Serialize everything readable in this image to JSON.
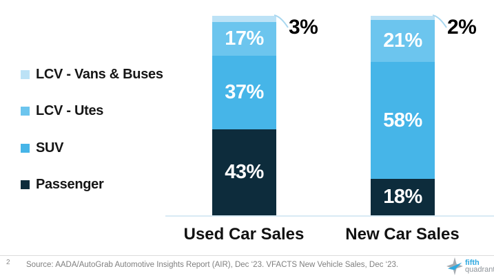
{
  "chart_data": {
    "type": "bar",
    "stacked": true,
    "orientation": "vertical",
    "categories": [
      "Used Car Sales",
      "New Car Sales"
    ],
    "series": [
      {
        "name": "LCV - Vans & Buses",
        "color": "#bce2f6",
        "values": [
          3,
          2
        ],
        "labels": [
          "3%",
          "2%"
        ],
        "label_placement": "callout-outside"
      },
      {
        "name": "LCV - Utes",
        "color": "#6cc5ee",
        "values": [
          17,
          21
        ],
        "labels": [
          "17%",
          "21%"
        ],
        "label_placement": "inside"
      },
      {
        "name": "SUV",
        "color": "#46b5e8",
        "values": [
          37,
          58
        ],
        "labels": [
          "37%",
          "58%"
        ],
        "label_placement": "inside"
      },
      {
        "name": "Passenger",
        "color": "#0d2c3c",
        "values": [
          43,
          18
        ],
        "labels": [
          "43%",
          "18%"
        ],
        "label_placement": "inside"
      }
    ],
    "ylim": [
      0,
      100
    ],
    "value_suffix": "%",
    "grid": false,
    "legend_position": "left",
    "callout_line_color": "#a9d7ef",
    "inside_label_color": "#ffffff",
    "callout_label_color": "#000000"
  },
  "footer": {
    "page_number": "2",
    "source": "Source: AADA/AutoGrab Automotive Insights Report (AIR), Dec ‘23. VFACTS New Vehicle Sales, Dec ‘23.",
    "logo": {
      "line1": "fifth",
      "line2": "quadrant",
      "brand_blue": "#2fa9e0",
      "brand_gray": "#8d9399"
    }
  }
}
